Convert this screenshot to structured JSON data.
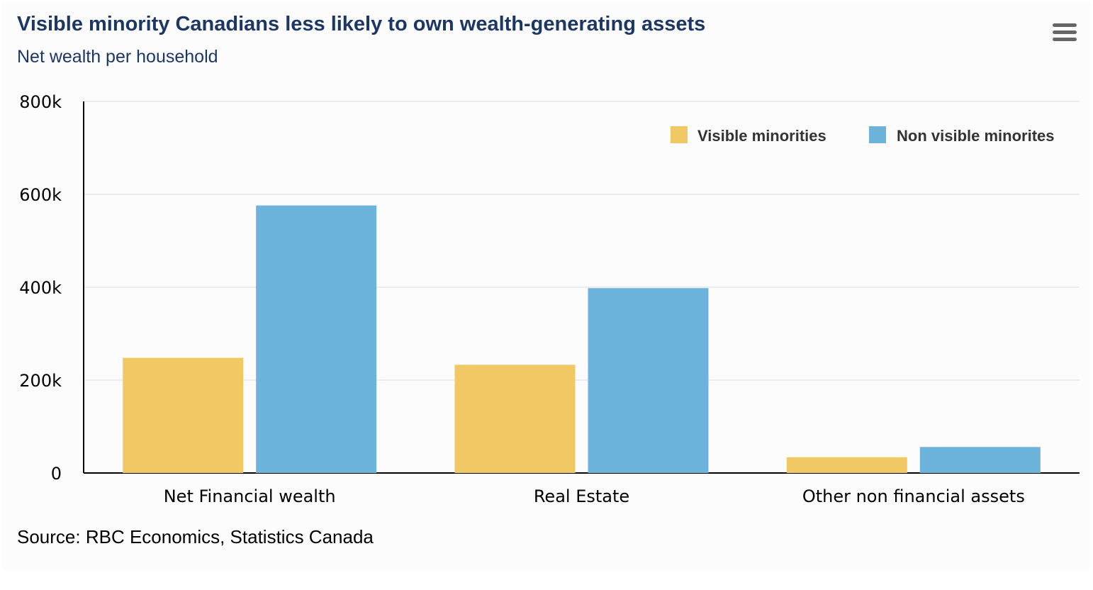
{
  "header": {
    "title": "Visible minority Canadians less likely to own wealth-generating assets",
    "subtitle": "Net wealth per household",
    "menu_icon": "hamburger-menu-icon"
  },
  "footer": {
    "source": "Source: RBC Economics, Statistics Canada"
  },
  "colors": {
    "visible_minorities": "#f0c965",
    "non_visible_minorites": "#6db4dc",
    "axis": "#000000",
    "grid": "#e6e6e6"
  },
  "chart_data": {
    "type": "bar",
    "title": "Visible minority Canadians less likely to own wealth-generating assets",
    "subtitle": "Net wealth per household",
    "categories": [
      "Net Financial wealth",
      "Real Estate",
      "Other non financial assets"
    ],
    "series": [
      {
        "name": "Visible minorities",
        "color": "#f0c965",
        "values": [
          248000,
          233000,
          34000
        ]
      },
      {
        "name": "Non visible minorites",
        "color": "#6db4dc",
        "values": [
          576000,
          398000,
          56000
        ]
      }
    ],
    "yticks": [
      0,
      200000,
      400000,
      600000,
      800000
    ],
    "ytick_labels": [
      "0",
      "200k",
      "400k",
      "600k",
      "800k"
    ],
    "ylim": [
      0,
      800000
    ],
    "xlabel": "",
    "ylabel": "",
    "grid": true,
    "legend_position": "top-right"
  }
}
